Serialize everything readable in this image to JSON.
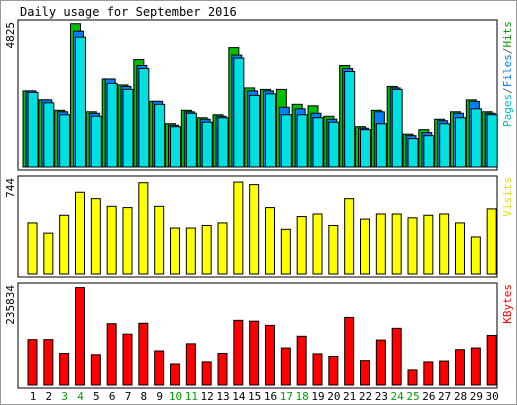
{
  "title": "Daily usage for September 2016",
  "colors": {
    "hits": "#00c000",
    "files": "#0080ff",
    "pages": "#00e0e0",
    "visits": "#ffff00",
    "kbytes": "#ff0000",
    "weekday_label": "#000000",
    "weekend_label": "#00a000",
    "panel_bg": "#ffffff",
    "bar_outline": "#000000"
  },
  "chart_data": [
    {
      "type": "bar",
      "panel": "hits-files-pages",
      "ylabel_parts": [
        {
          "text": "Pages",
          "color": "#00c0c0"
        },
        {
          "text": "/",
          "color": "#606060"
        },
        {
          "text": "Files",
          "color": "#0080ff"
        },
        {
          "text": "/",
          "color": "#606060"
        },
        {
          "text": "Hits",
          "color": "#00a000"
        }
      ],
      "ytick_max": "4825",
      "ylim": [
        0,
        4825
      ],
      "x": [
        1,
        2,
        3,
        4,
        5,
        6,
        7,
        8,
        9,
        10,
        11,
        12,
        13,
        14,
        15,
        16,
        17,
        18,
        19,
        20,
        21,
        22,
        23,
        24,
        25,
        26,
        27,
        28,
        29,
        30
      ],
      "series": [
        {
          "name": "Hits",
          "values": [
            2550,
            2250,
            1900,
            4800,
            1850,
            2950,
            2750,
            3600,
            2200,
            1450,
            1900,
            1650,
            1750,
            4000,
            2650,
            2600,
            2600,
            2100,
            2050,
            1700,
            3400,
            1350,
            1900,
            2700,
            1100,
            1250,
            1600,
            1850,
            2250,
            1850
          ]
        },
        {
          "name": "Files",
          "values": [
            2550,
            2250,
            1850,
            4550,
            1800,
            2950,
            2700,
            3400,
            2200,
            1400,
            1850,
            1600,
            1700,
            3750,
            2550,
            2550,
            2000,
            1950,
            1800,
            1600,
            3300,
            1300,
            1850,
            2650,
            1050,
            1150,
            1550,
            1800,
            2200,
            1800
          ]
        },
        {
          "name": "Pages",
          "values": [
            2500,
            2150,
            1750,
            4350,
            1700,
            2800,
            2600,
            3300,
            2100,
            1350,
            1800,
            1500,
            1650,
            3650,
            2400,
            2450,
            1750,
            1750,
            1650,
            1500,
            3200,
            1250,
            1450,
            2600,
            950,
            1050,
            1450,
            1650,
            1950,
            1750
          ]
        }
      ],
      "x_label_colors": [
        "weekday",
        "weekday",
        "weekend",
        "weekend",
        "weekday",
        "weekday",
        "weekday",
        "weekday",
        "weekday",
        "weekend",
        "weekend",
        "weekday",
        "weekday",
        "weekday",
        "weekday",
        "weekday",
        "weekend",
        "weekend",
        "weekday",
        "weekday",
        "weekday",
        "weekday",
        "weekday",
        "weekend",
        "weekend",
        "weekday",
        "weekday",
        "weekday",
        "weekday",
        "weekday"
      ]
    },
    {
      "type": "bar",
      "panel": "visits",
      "ylabel_parts": [
        {
          "text": "Visits",
          "color": "#e0e000"
        }
      ],
      "ytick_max": "744",
      "ylim": [
        0,
        744
      ],
      "x": [
        1,
        2,
        3,
        4,
        5,
        6,
        7,
        8,
        9,
        10,
        11,
        12,
        13,
        14,
        15,
        16,
        17,
        18,
        19,
        20,
        21,
        22,
        23,
        24,
        25,
        26,
        27,
        28,
        29,
        30
      ],
      "series": [
        {
          "name": "Visits",
          "values": [
            400,
            320,
            460,
            640,
            590,
            530,
            520,
            715,
            530,
            360,
            360,
            380,
            400,
            720,
            700,
            520,
            350,
            450,
            470,
            380,
            590,
            430,
            470,
            470,
            440,
            460,
            470,
            400,
            290,
            510
          ]
        }
      ]
    },
    {
      "type": "bar",
      "panel": "kbytes",
      "ylabel_parts": [
        {
          "text": "KBytes",
          "color": "#ff0000"
        }
      ],
      "ytick_max": "235834",
      "ylim": [
        0,
        235834
      ],
      "x": [
        1,
        2,
        3,
        4,
        5,
        6,
        7,
        8,
        9,
        10,
        11,
        12,
        13,
        14,
        15,
        16,
        17,
        18,
        19,
        20,
        21,
        22,
        23,
        24,
        25,
        26,
        27,
        28,
        29,
        30
      ],
      "series": [
        {
          "name": "KBytes",
          "values": [
            108000,
            108000,
            75000,
            232000,
            72000,
            146000,
            121000,
            147000,
            81000,
            50000,
            98000,
            55000,
            75000,
            154000,
            152000,
            142000,
            88000,
            116000,
            74000,
            68000,
            161000,
            58000,
            107000,
            135000,
            36000,
            55000,
            57000,
            84000,
            88000,
            118000
          ]
        }
      ]
    }
  ]
}
